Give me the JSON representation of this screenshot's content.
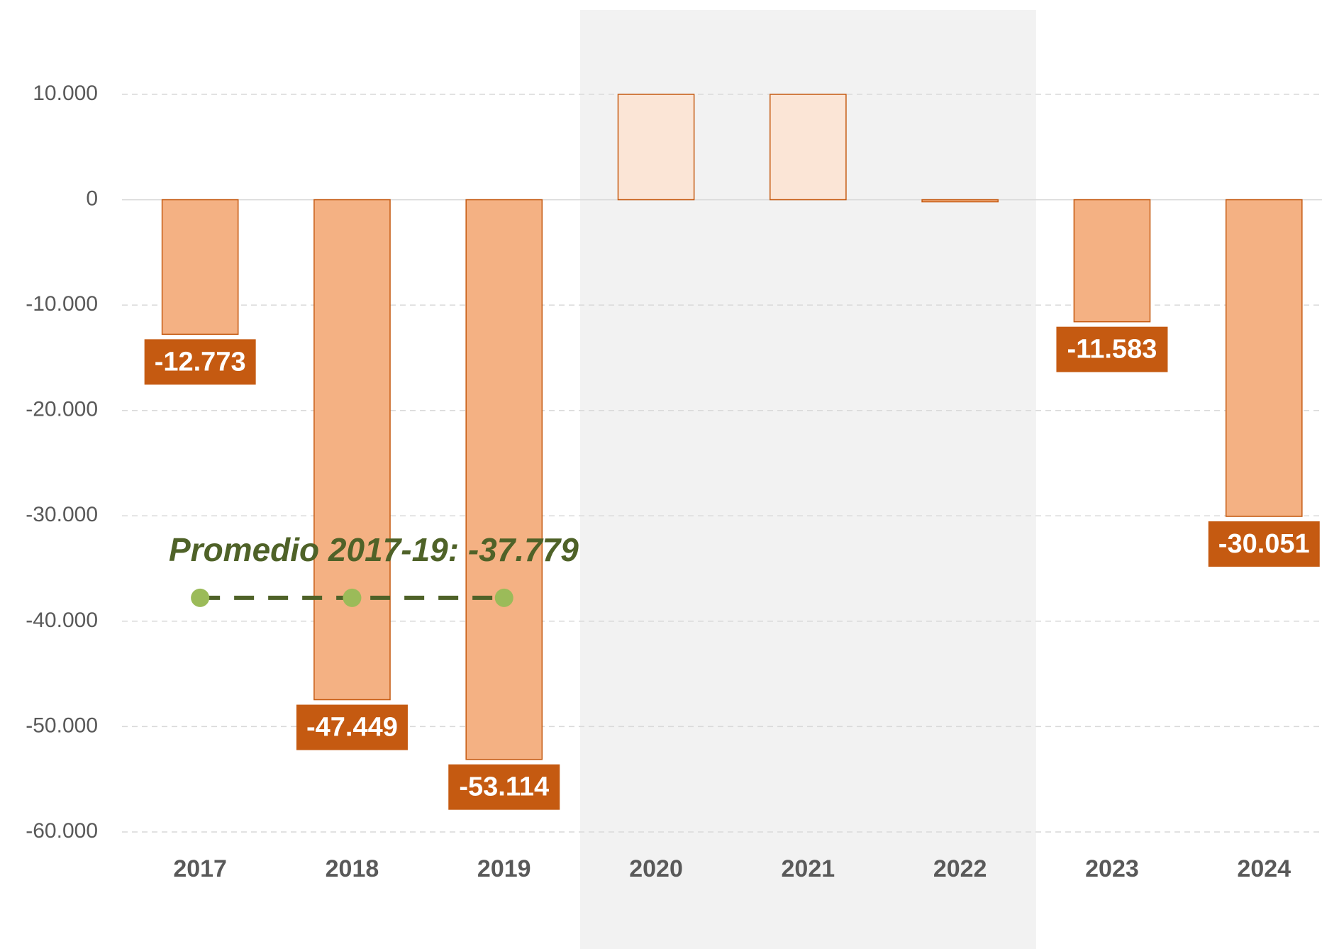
{
  "chart_data": {
    "type": "bar",
    "categories": [
      "2017",
      "2018",
      "2019",
      "2020",
      "2021",
      "2022",
      "2023",
      "2024"
    ],
    "values": [
      -12773,
      -47449,
      -53114,
      10000,
      10000,
      -200,
      -11583,
      -30051
    ],
    "value_labels": [
      "-12.773",
      "-47.449",
      "-53.114",
      null,
      null,
      null,
      "-11.583",
      "-30.051"
    ],
    "bar_colors": [
      "#f4b183",
      "#f4b183",
      "#f4b183",
      "#fbe5d6",
      "#fbe5d6",
      "#f4b183",
      "#f4b183",
      "#f4b183"
    ],
    "bar_edge_color": "#c55a11",
    "label_box_color": "#c55a11",
    "shaded_categories": [
      "2020",
      "2021",
      "2022"
    ],
    "shade_color": "#f2f2f2",
    "ylim": [
      -60000,
      10000
    ],
    "yticks": [
      {
        "value": 10000,
        "label": "10.000"
      },
      0,
      {
        "value": -10000,
        "label": "-10.000"
      },
      {
        "value": -20000,
        "label": "-20.000"
      },
      {
        "value": -30000,
        "label": "-30.000"
      },
      {
        "value": -40000,
        "label": "-40.000"
      },
      {
        "value": -50000,
        "label": "-50.000"
      },
      {
        "value": -60000,
        "label": "-60.000"
      }
    ],
    "grid": true,
    "average": {
      "text": "Promedio 2017-19: -37.779",
      "values": [
        -37779,
        -37779,
        -37779,
        null,
        null,
        null,
        null,
        null
      ],
      "line_color": "#4f6228",
      "dot_color": "#9bbb59"
    }
  }
}
